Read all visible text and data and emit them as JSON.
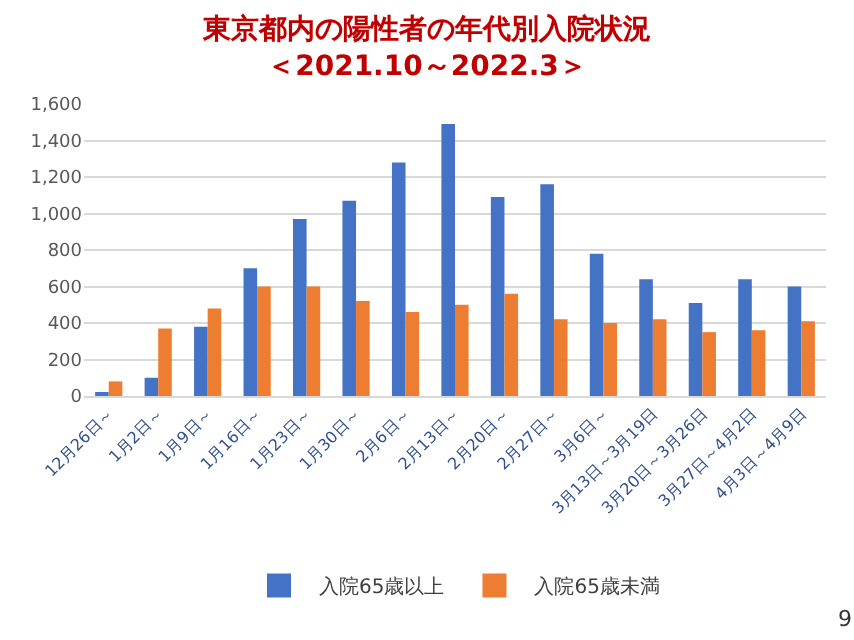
{
  "chart_data": {
    "type": "bar",
    "title": "東京都内の陽性者の年代別入院状況",
    "subtitle": "＜2021.10～2022.3＞",
    "categories": [
      "12月26日～",
      "1月2日～",
      "1月9日～",
      "1月16日～",
      "1月23日～",
      "1月30日～",
      "2月6日～",
      "2月13日～",
      "2月20日～",
      "2月27日～",
      "3月6日～",
      "3月13日～3月19日",
      "3月20日～3月26日",
      "3月27日～4月2日",
      "4月3日～4月9日"
    ],
    "series": [
      {
        "name": "入院65歳以上",
        "color": "#4472c4",
        "values": [
          20,
          100,
          380,
          700,
          970,
          1070,
          1280,
          1490,
          1090,
          1160,
          780,
          640,
          510,
          640,
          600
        ]
      },
      {
        "name": "入院65歳未満",
        "color": "#ed7d31",
        "values": [
          80,
          370,
          480,
          600,
          600,
          520,
          460,
          500,
          560,
          420,
          400,
          420,
          350,
          360,
          410
        ]
      }
    ],
    "ylim": [
      0,
      1600
    ],
    "yticks": [
      {
        "value": 0,
        "label": "0"
      },
      {
        "value": 200,
        "label": "200"
      },
      {
        "value": 400,
        "label": "400"
      },
      {
        "value": 600,
        "label": "600"
      },
      {
        "value": 800,
        "label": "800"
      },
      {
        "value": 1000,
        "label": "1,000"
      },
      {
        "value": 1200,
        "label": "1,200"
      },
      {
        "value": 1400,
        "label": "1,400"
      },
      {
        "value": 1600,
        "label": "1,600"
      }
    ],
    "grid": "y",
    "legend": "bottom",
    "annotations": [
      "9"
    ]
  }
}
